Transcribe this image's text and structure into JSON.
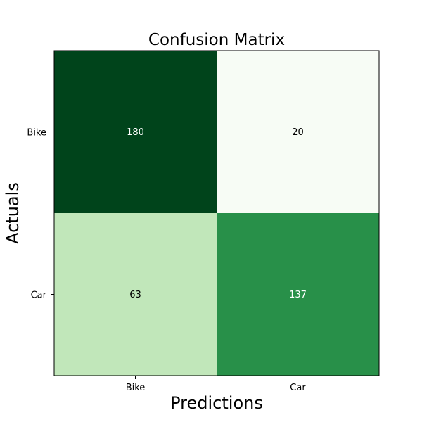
{
  "chart_data": {
    "type": "heatmap",
    "title": "Confusion Matrix",
    "xlabel": "Predictions",
    "ylabel": "Actuals",
    "x_categories": [
      "Bike",
      "Car"
    ],
    "y_categories": [
      "Bike",
      "Car"
    ],
    "values": [
      [
        180,
        20
      ],
      [
        63,
        137
      ]
    ],
    "colormap": "Greens",
    "value_range": [
      20,
      180
    ],
    "grid": false,
    "legend": "none"
  }
}
